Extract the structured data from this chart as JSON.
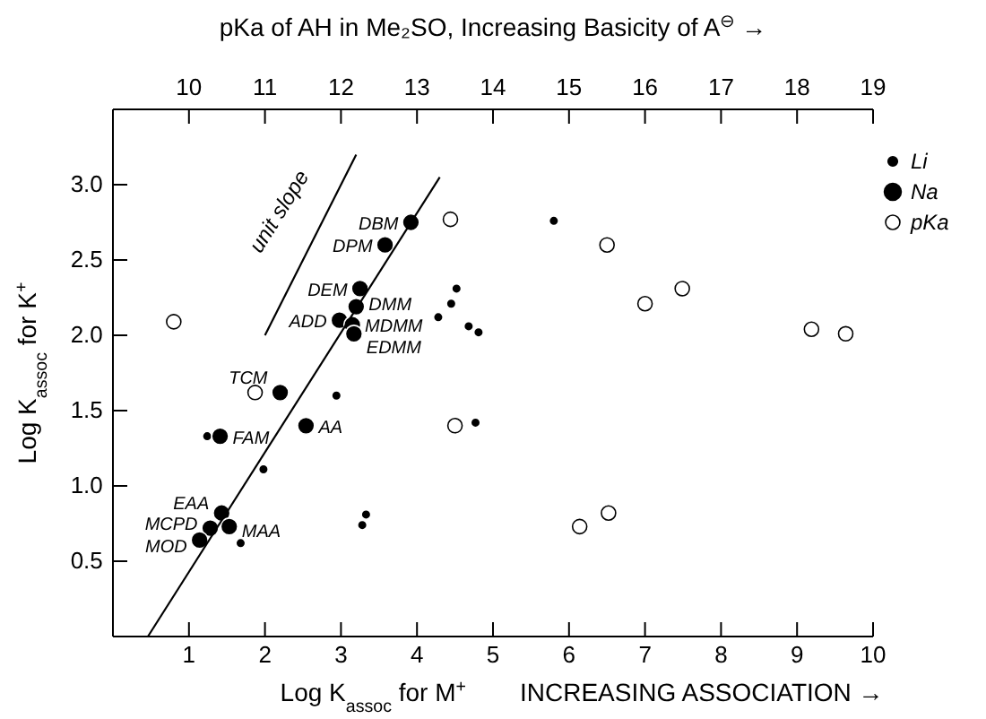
{
  "chart_data": {
    "type": "scatter",
    "xlabel": "Log K$_{assoc}$ for M$^{+}$",
    "ylabel": "Log K$_{assoc}$ for K$^{+}$",
    "x2label": "pKa of AH in Me₂SO, Increasing Basicity of A$^{⊖}$ →",
    "xlim": [
      0,
      10
    ],
    "xticks": [
      1,
      2,
      3,
      4,
      5,
      6,
      7,
      8,
      9,
      10
    ],
    "x2lim": [
      9,
      19
    ],
    "x2ticks": [
      10,
      11,
      12,
      13,
      14,
      15,
      16,
      17,
      18,
      19
    ],
    "ylim": [
      0,
      3.5
    ],
    "yticks": [
      0.5,
      {
        "value": 1,
        "label": "1.0"
      },
      1.5,
      {
        "value": 2,
        "label": "2.0"
      },
      2.5,
      {
        "value": 3,
        "label": "3.0"
      }
    ],
    "marker": "circle",
    "legend": "top right",
    "grid": false,
    "series": [
      {
        "name": "Li",
        "color": "#000000",
        "x": [
          5.8,
          4.52,
          4.45,
          4.28,
          4.68,
          4.81,
          2.94,
          4.77,
          1.98,
          1.24,
          3.33,
          3.28,
          1.68
        ],
        "values": [
          2.76,
          2.31,
          2.21,
          2.12,
          2.06,
          2.02,
          1.6,
          1.42,
          1.11,
          1.33,
          0.81,
          0.74,
          0.62
        ]
      },
      {
        "name": "Na",
        "color": "#000000",
        "x": [
          3.92,
          3.58,
          3.25,
          3.2,
          2.98,
          3.15,
          3.17,
          2.2,
          2.54,
          1.41,
          1.43,
          1.28,
          1.53,
          1.14
        ],
        "values": [
          2.75,
          2.6,
          2.31,
          2.19,
          2.1,
          2.07,
          2.01,
          1.62,
          1.4,
          1.33,
          0.82,
          0.72,
          0.73,
          0.64
        ]
      },
      {
        "name": "pKa",
        "color": "#ffffff",
        "axis": "x2",
        "x": [
          9.8,
          10.87,
          13.44,
          13.5,
          15.5,
          16.49,
          16.0,
          18.19,
          18.64,
          15.14,
          15.52
        ],
        "values": [
          2.09,
          1.62,
          2.77,
          1.4,
          2.6,
          2.31,
          2.21,
          2.04,
          2.01,
          0.73,
          0.82
        ]
      },
      {
        "type": "line",
        "color": "#000000",
        "marker": "none",
        "x": [
          0.46,
          4.3
        ],
        "values": [
          0,
          3.05
        ]
      },
      {
        "type": "line",
        "color": "#000000",
        "marker": "none",
        "x": [
          2.0,
          3.2
        ],
        "values": [
          2.0,
          3.2
        ]
      }
    ],
    "annotations": [
      "INCREASING ASSOCIATION →",
      "unit slope",
      {
        "text": "DBM",
        "x": 3.92,
        "y": 2.75
      },
      {
        "text": "DPM",
        "x": 3.58,
        "y": 2.6
      },
      {
        "text": "DEM",
        "x": 3.25,
        "y": 2.31
      },
      {
        "text": "DMM",
        "x": 3.2,
        "y": 2.19
      },
      {
        "text": "ADD",
        "x": 2.98,
        "y": 2.1
      },
      {
        "text": "MDMM",
        "x": 3.15,
        "y": 2.07
      },
      {
        "text": "EDMM",
        "x": 3.17,
        "y": 2.01
      },
      {
        "text": "TCM",
        "x": 2.2,
        "y": 1.62
      },
      {
        "text": "AA",
        "x": 2.54,
        "y": 1.4
      },
      {
        "text": "FAM",
        "x": 1.41,
        "y": 1.33
      },
      {
        "text": "EAA",
        "x": 1.43,
        "y": 0.82
      },
      {
        "text": "MCPD",
        "x": 1.28,
        "y": 0.72
      },
      {
        "text": "MAA",
        "x": 1.53,
        "y": 0.73
      },
      {
        "text": "MOD",
        "x": 1.14,
        "y": 0.64
      }
    ]
  }
}
